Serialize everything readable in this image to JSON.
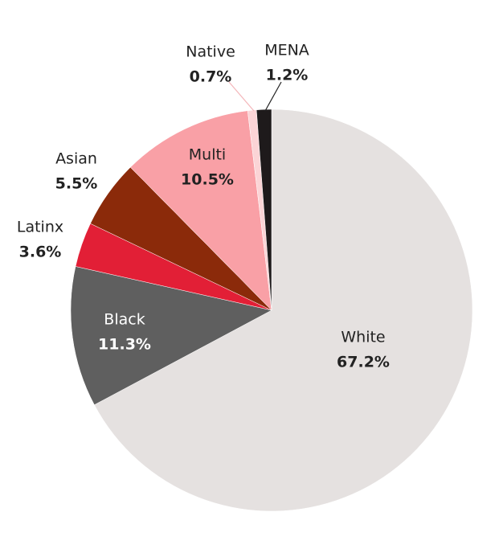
{
  "chart_data": {
    "type": "pie",
    "categories": [
      "White",
      "Black",
      "Latinx",
      "Asian",
      "Multi",
      "Native",
      "MENA"
    ],
    "values": [
      67.2,
      11.3,
      3.6,
      5.5,
      10.5,
      0.7,
      1.2
    ],
    "value_labels": [
      "67.2%",
      "11.3%",
      "3.6%",
      "5.5%",
      "10.5%",
      "0.7%",
      "1.2%"
    ],
    "colors": [
      "#e5e1e0",
      "#5f5f5f",
      "#e21f36",
      "#8b2a0a",
      "#f9a0a6",
      "#fbd4d6",
      "#1e1a1b"
    ]
  }
}
